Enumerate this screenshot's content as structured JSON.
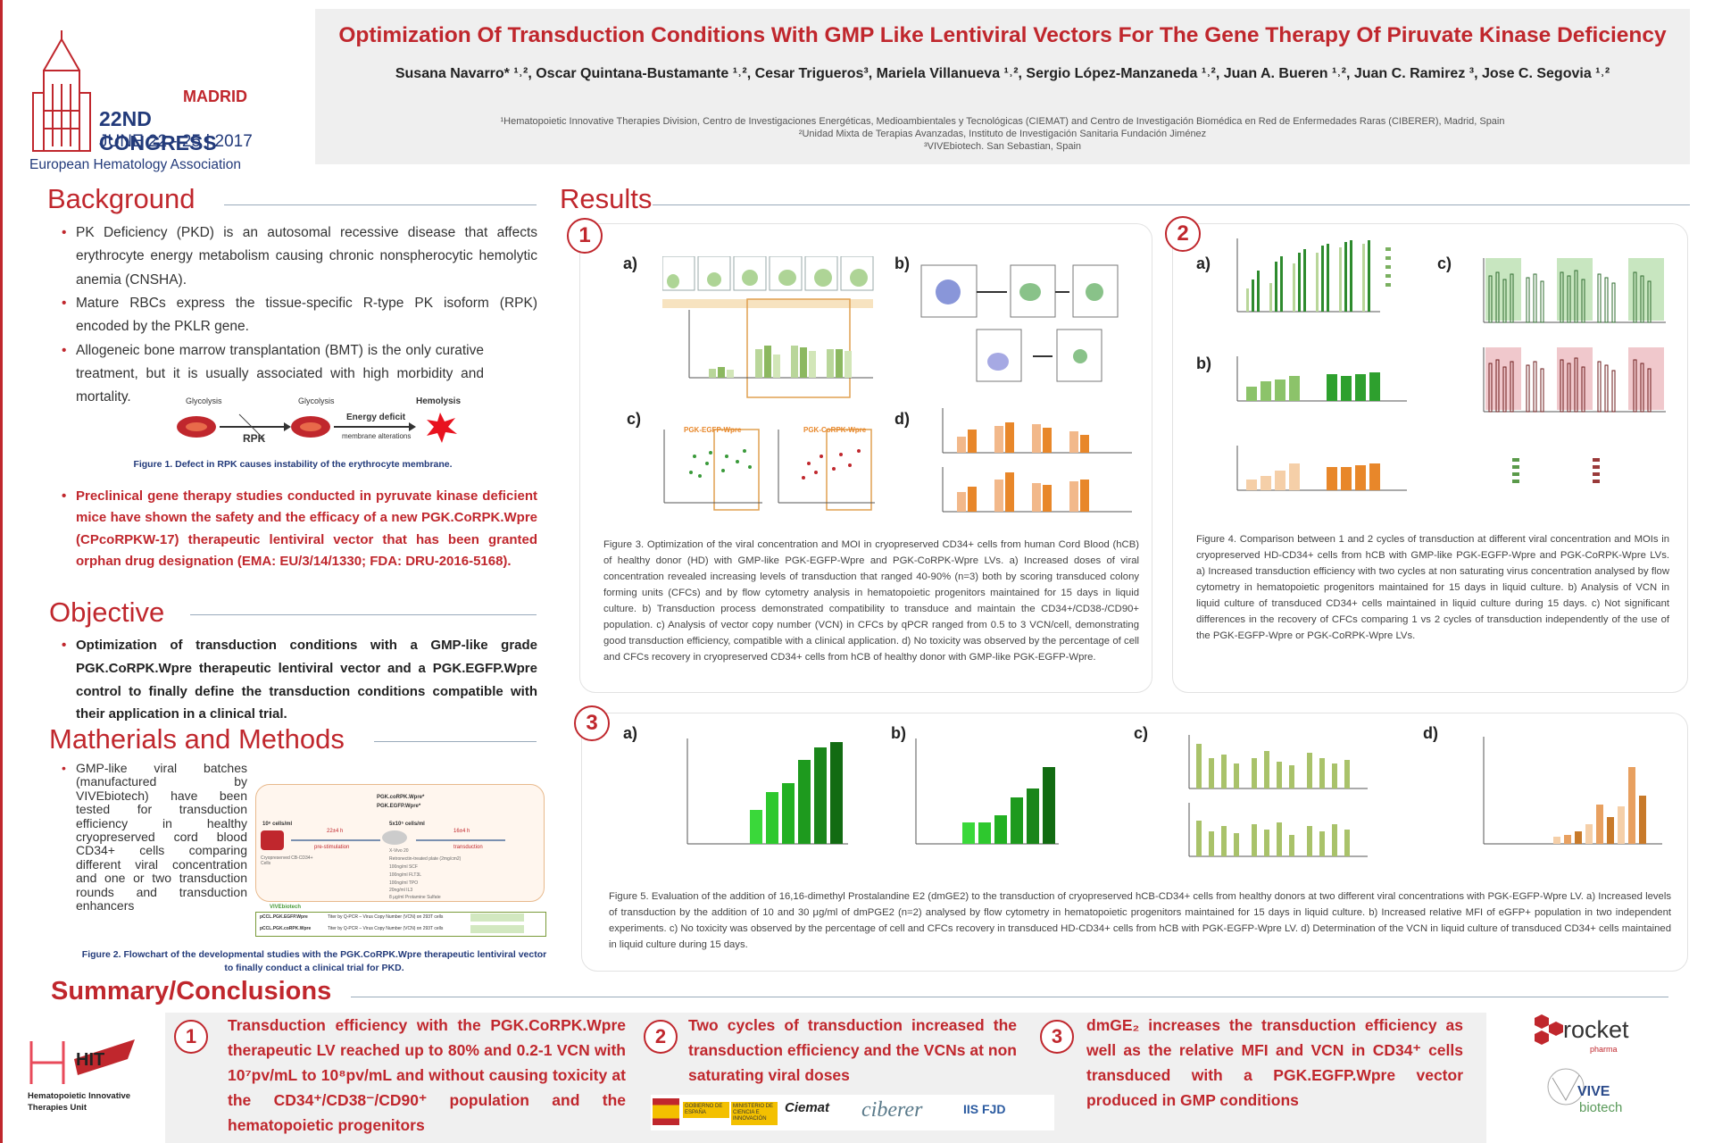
{
  "congress": {
    "city": "MADRID",
    "title": "22ND CONGRESS",
    "dates": "JUNE 22 - 25 | 2017",
    "org": "European Hematology Association"
  },
  "header": {
    "title": "Optimization Of Transduction Conditions With GMP Like Lentiviral Vectors For The Gene Therapy Of Piruvate Kinase Deficiency",
    "authors": "Susana Navarro* ¹˒², Oscar Quintana-Bustamante ¹˒², Cesar Trigueros³, Mariela Villanueva ¹˒², Sergio López-Manzaneda ¹˒², Juan A. Bueren ¹˒², Juan C. Ramirez ³, Jose C. Segovia ¹˒²",
    "aff1": "¹Hematopoietic Innovative Therapies Division, Centro de Investigaciones Energéticas, Medioambientales y Tecnológicas (CIEMAT) and Centro de Investigación Biomédica en Red de Enfermedades Raras (CIBERER), Madrid, Spain",
    "aff2": "²Unidad Mixta de Terapias Avanzadas, Instituto de Investigación Sanitaria Fundación Jiménez",
    "aff3": "³VIVEbiotech. San Sebastian, Spain"
  },
  "background": {
    "title": "Background",
    "b1": "PK Deficiency (PKD) is an autosomal recessive disease that affects erythrocyte energy metabolism causing chronic nonspherocytic hemolytic anemia (CNSHA).",
    "b2": "Mature RBCs express the tissue-specific R-type PK isoform (RPK) encoded by the PKLR gene.",
    "b3": "Allogeneic bone marrow transplantation (BMT) is the only curative treatment, but it is usually associated with high morbidity and mortality.",
    "fig1": {
      "glycolysis": "Glycolysis",
      "rpk": "RPK",
      "energy": "Energy deficit",
      "membrane": "membrane alterations",
      "hemolysis": "Hemolysis"
    },
    "fig1_caption": "Figure 1. Defect in RPK causes instability of the erythrocyte membrane.",
    "b4": "Preclinical gene therapy studies conducted in pyruvate kinase deficient mice have shown the safety and the efficacy of a new PGK.CoRPK.Wpre (CPcoRPKW-17) therapeutic lentiviral vector that has been granted orphan drug designation (EMA: EU/3/14/1330; FDA: DRU-2016-5168)."
  },
  "objective": {
    "title": "Objective",
    "text": "Optimization of transduction conditions with a GMP-like grade PGK.CoRPK.Wpre therapeutic lentiviral vector and a PGK.EGFP.Wpre control to finally define the transduction conditions compatible with their application in a clinical trial."
  },
  "methods": {
    "title": "Matherials and Methods",
    "text": "GMP-like viral batches (manufactured by VIVEbiotech) have been tested for transduction efficiency in healthy cryopreserved cord blood CD34+ cells comparing different viral concentration and one or two transduction rounds and transduction enhancers",
    "flow": {
      "vec1": "PGK.coRPK.Wpre*",
      "vec2": "PGK.EGFP.Wpre*",
      "cells1": "10⁶ cells/ml",
      "cells2": "5x10⁵ cells/ml",
      "cryo": "Cryopreserved CB-CD34+ Cells",
      "t1": "22±4 h",
      "prestim": "pre-stimulation",
      "t2": "16±4 h",
      "transd": "transduction",
      "medium": "X-Vivo 20",
      "retro": "Retronectin-treated plate (2mg/cm2)",
      "scf": "100ng/ml SCF",
      "flt3": "100ng/ml FLT3L",
      "tpo": "100ng/ml TPO",
      "il3": "20ng/ml IL3",
      "prot": "8 μg/ml Protamine Sulfate",
      "vive": "VIVEbiotech",
      "row1": "pCCL.PGK.EGFP.Wpre",
      "row2": "pCCL.PGK.coRPK.Wpre",
      "row_desc": "Titer by Q-PCR – Virus Copy Number (VCN) on 293T cells"
    },
    "fig2_caption": "Figure 2. Flowchart of the developmental studies with the PGK.CoRPK.Wpre therapeutic lentiviral vector to finally conduct a clinical trial for PKD."
  },
  "results": {
    "title": "Results",
    "p1": {
      "num": "1",
      "a": "a)",
      "b": "b)",
      "c": "c)",
      "d": "d)",
      "caption": "Figure 3. Optimization of the viral concentration and MOI in cryopreserved CD34+ cells from human Cord Blood (hCB) of healthy donor (HD) with GMP-like PGK-EGFP-Wpre and PGK-CoRPK-Wpre LVs. a) Increased doses of viral concentration revealed increasing levels of transduction that ranged 40-90% (n=3) both by scoring transduced colony forming units (CFCs) and by flow cytometry analysis in hematopoietic progenitors maintained for 15 days in liquid culture. b) Transduction process demonstrated compatibility to transduce and maintain the CD34+/CD38-/CD90+ population. c) Analysis of vector copy number (VCN) in CFCs by qPCR ranged from 0.5 to 3 VCN/cell, demonstrating good transduction efficiency, compatible with a clinical application. d) No toxicity was observed by the percentage of cell and CFCs recovery in cryopreserved CD34+ cells from hCB of healthy donor with GMP-like PGK-EGFP-Wpre.",
      "series_c1": "PGK-EGFP-Wpre",
      "series_c2": "PGK-CoRPK-Wpre"
    },
    "p2": {
      "num": "2",
      "a": "a)",
      "b": "b)",
      "c": "c)",
      "caption": "Figure 4. Comparison between 1 and 2 cycles of transduction at different viral concentration and MOIs in cryopreserved HD-CD34+ cells from hCB with GMP-like PGK-EGFP-Wpre and PGK-CoRPK-Wpre LVs. a) Increased transduction efficiency with two cycles at non saturating virus concentration analysed by flow cytometry in hematopoietic progenitors maintained for 15 days in liquid culture. b) Analysis of VCN in liquid culture of transduced CD34+ cells maintained in liquid culture during 15 days. c) Not significant differences in the recovery of CFCs comparing 1 vs 2 cycles of transduction independently of the use of the PGK-EGFP-Wpre or PGK-CoRPK-Wpre LVs."
    },
    "p3": {
      "num": "3",
      "a": "a)",
      "b": "b)",
      "c": "c)",
      "d": "d)",
      "caption": "Figure 5. Evaluation of the addition of 16,16-dimethyl Prostalandine E2 (dmGE2) to the transduction of cryopreserved hCB-CD34+ cells from healthy donors at two different viral concentrations with PGK-EGFP-Wpre LV. a) Increased levels of transduction by the addition of 10 and 30 μg/ml of dmPGE2 (n=2) analysed by flow cytometry in hematopoietic progenitors maintained for 15 days in liquid culture. b) Increased relative MFI of eGFP+ population in two independent experiments. c) No toxicity was observed by the percentage of cell and CFCs recovery in transduced HD-CD34+ cells from hCB with PGK-EGFP-Wpre LV. d) Determination of the VCN in liquid culture of transduced CD34+ cells maintained in liquid culture during 15 days."
    }
  },
  "summary": {
    "title": "Summary/Conclusions",
    "s1_num": "1",
    "s1": "Transduction efficiency with the PGK.CoRPK.Wpre therapeutic LV reached up to 80% and 0.2-1 VCN with 10⁷pv/mL to 10⁸pv/mL and without causing toxicity at the CD34⁺/CD38⁻/CD90⁺ population and the hematopoietic progenitors",
    "s2_num": "2",
    "s2": "Two cycles of transduction increased the transduction efficiency and the VCNs at non saturating viral doses",
    "s3_num": "3",
    "s3": "dmGE₂ increases the transduction efficiency as well as the relative MFI and VCN in CD34⁺ cells transduced with a PGK.EGFP.Wpre vector produced in GMP conditions"
  },
  "logos": {
    "hit": "HIT",
    "hit_name": "Hematopoietic Innovative Therapies Unit",
    "rocket": "rocket",
    "rocket_sub": "pharma",
    "vive": "VIVE",
    "vive_sub": "biotech",
    "gob": "GOBIERNO DE ESPAÑA",
    "ministerio": "MINISTERIO DE CIENCIA E INNOVACIÓN",
    "ciemat": "Ciemat",
    "ciberer": "ciberer",
    "iis": "IIS FJD"
  },
  "colors": {
    "red": "#c0272d",
    "navy": "#223a7a",
    "green": "#2e8b2e",
    "orange": "#e8872a"
  }
}
